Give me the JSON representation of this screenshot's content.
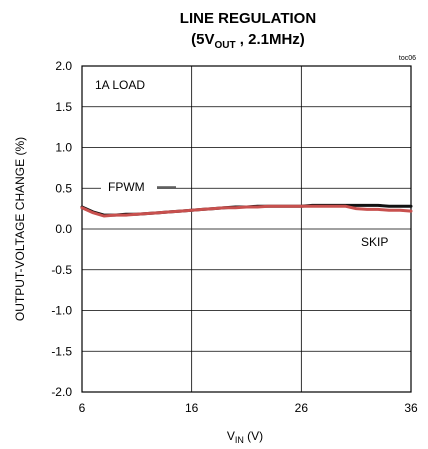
{
  "chart_data": {
    "type": "line",
    "title_line1": "LINE REGULATION",
    "title_line2": {
      "pre": "(5V",
      "sub": "OUT",
      "post": " , 2.1MHz)"
    },
    "tag": "toc06",
    "xlabel": {
      "pre": "V",
      "sub": "IN",
      "post": " (V)"
    },
    "ylabel": "OUTPUT-VOLTAGE  CHANGE (%)",
    "xlim": [
      6,
      36
    ],
    "ylim": [
      -2.0,
      2.0
    ],
    "xticks": [
      "6",
      "16",
      "26",
      "36"
    ],
    "yticks": [
      "2.0",
      "1.5",
      "1.0",
      "0.5",
      "0.0",
      "-0.5",
      "-1.0",
      "-1.5",
      "-2.0"
    ],
    "grid": true,
    "annotations": {
      "load": "1A LOAD",
      "fpwm": "FPWM",
      "skip": "SKIP"
    },
    "series": [
      {
        "name": "FPWM",
        "color": "#111111",
        "x": [
          6,
          7,
          8,
          9,
          10,
          11,
          12,
          13,
          14,
          15,
          16,
          17,
          18,
          19,
          20,
          21,
          22,
          23,
          24,
          25,
          26,
          27,
          28,
          29,
          30,
          31,
          32,
          33,
          34,
          35,
          36
        ],
        "y": [
          0.27,
          0.21,
          0.17,
          0.17,
          0.18,
          0.18,
          0.19,
          0.2,
          0.21,
          0.22,
          0.23,
          0.24,
          0.25,
          0.26,
          0.27,
          0.27,
          0.28,
          0.28,
          0.28,
          0.28,
          0.28,
          0.29,
          0.29,
          0.29,
          0.29,
          0.29,
          0.29,
          0.29,
          0.28,
          0.28,
          0.28
        ]
      },
      {
        "name": "SKIP",
        "color": "#c8504e",
        "x": [
          6,
          7,
          8,
          9,
          10,
          11,
          12,
          13,
          14,
          15,
          16,
          17,
          18,
          19,
          20,
          21,
          22,
          23,
          24,
          25,
          26,
          27,
          28,
          29,
          30,
          31,
          32,
          33,
          34,
          35,
          36
        ],
        "y": [
          0.26,
          0.2,
          0.16,
          0.17,
          0.17,
          0.18,
          0.19,
          0.2,
          0.21,
          0.22,
          0.23,
          0.24,
          0.25,
          0.26,
          0.26,
          0.27,
          0.27,
          0.28,
          0.28,
          0.28,
          0.28,
          0.28,
          0.28,
          0.28,
          0.28,
          0.25,
          0.24,
          0.24,
          0.23,
          0.23,
          0.22
        ]
      }
    ]
  }
}
